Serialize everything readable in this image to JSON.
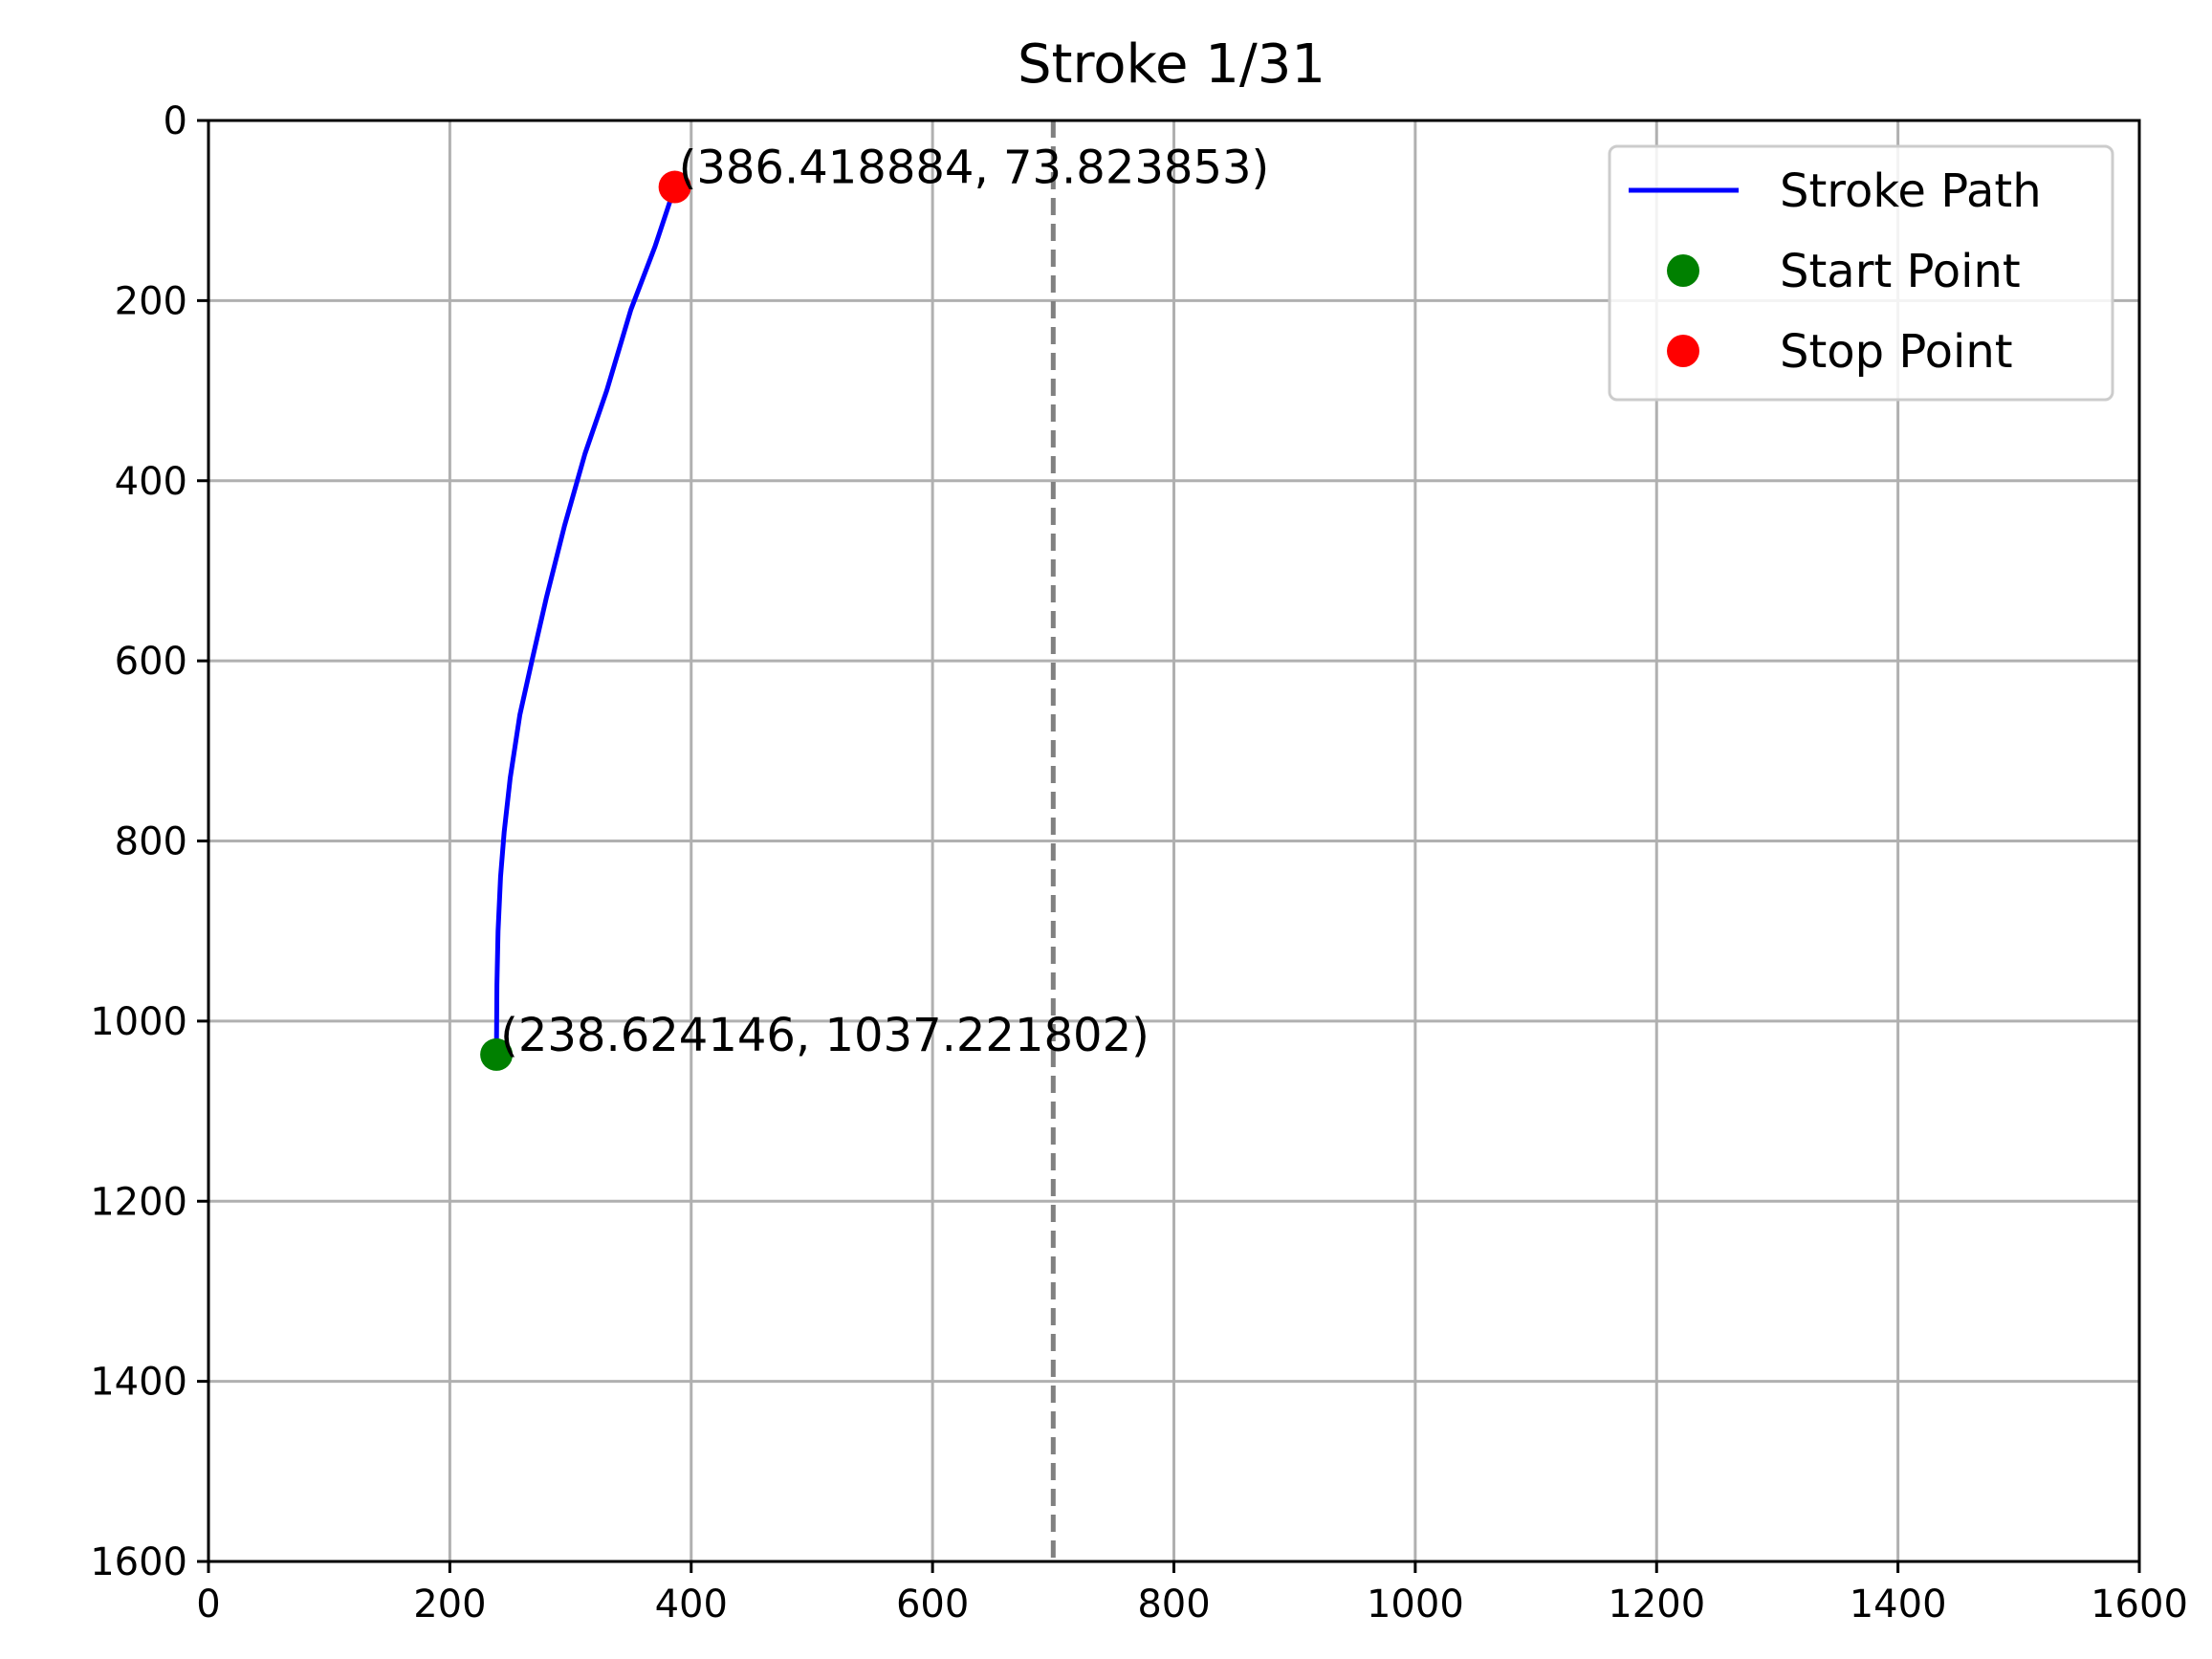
{
  "chart_data": {
    "type": "line",
    "title": "Stroke 1/31",
    "xlabel": "",
    "ylabel": "",
    "xlim": [
      0,
      1600
    ],
    "ylim": [
      1600,
      0
    ],
    "y_inverted": true,
    "x_ticks": [
      0,
      200,
      400,
      600,
      800,
      1000,
      1200,
      1400,
      1600
    ],
    "y_ticks": [
      0,
      200,
      400,
      600,
      800,
      1000,
      1200,
      1400,
      1600
    ],
    "grid": true,
    "legend_position": "top-right",
    "reference_line": {
      "x": 700,
      "style": "dashed",
      "color": "#808080"
    },
    "series": [
      {
        "name": "Stroke Path",
        "color": "#0000ff",
        "x": [
          238.6,
          239,
          240,
          242,
          245,
          250,
          258,
          268,
          280,
          295,
          312,
          330,
          350,
          370,
          386.4
        ],
        "y": [
          1037.2,
          960,
          900,
          840,
          790,
          730,
          660,
          600,
          530,
          450,
          370,
          300,
          210,
          140,
          73.8
        ]
      }
    ],
    "points": [
      {
        "name": "Start Point",
        "color": "#008000",
        "x": 238.624146,
        "y": 1037.221802,
        "label": "(238.624146, 1037.221802)"
      },
      {
        "name": "Stop Point",
        "color": "#ff0000",
        "x": 386.418884,
        "y": 73.823853,
        "label": "(386.418884, 73.823853)"
      }
    ]
  }
}
